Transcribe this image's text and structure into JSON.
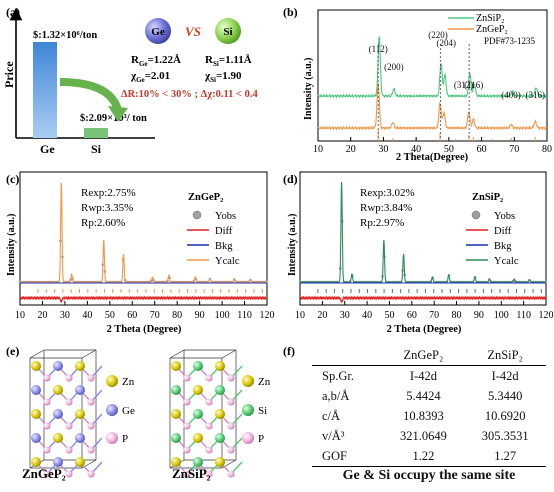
{
  "labels": {
    "a": "(a)",
    "b": "(b)",
    "c": "(c)",
    "d": "(d)",
    "e": "(e)",
    "f": "(f)"
  },
  "panel_a": {
    "ylabel": "Price",
    "price_ge": "$:1.32×10⁶/ton",
    "price_si": "$:2.09×10³/ ton",
    "cat_ge": "Ge",
    "cat_si": "Si",
    "ge_symbol": "Ge",
    "si_symbol": "Si",
    "vs": "VS",
    "r_ge": "R",
    "r_ge_sub": "Ge",
    "r_ge_val": "=1.22Å",
    "x_ge": "χ",
    "x_ge_sub": "Ge",
    "x_ge_val": "=2.01",
    "r_si": "R",
    "r_si_sub": "Si",
    "r_si_val": "=1.11Å",
    "x_si": "χ",
    "x_si_sub": "Si",
    "x_si_val": "=1.90",
    "delta": "ΔR:10% < 30% ; Δχ:0.11 < 0.4",
    "colors": {
      "ge_bar": "#5b9bd5",
      "si_bar": "#7ac27a",
      "delta": "#c0392b",
      "arrow": "#66b34e"
    }
  },
  "panel_b": {
    "xlabel": "2 Theta(Degree)",
    "ylabel": "Intensity  (a.u.)",
    "legend": [
      {
        "name": "ZnSiP₂",
        "color": "#4cc77e"
      },
      {
        "name": "ZnGeP₂",
        "color": "#f2974b"
      }
    ],
    "pdf": "PDF#73-1235",
    "xticks": [
      "10",
      "20",
      "30",
      "40",
      "50",
      "60",
      "70",
      "80"
    ],
    "peaks": [
      "(112)",
      "(200)",
      "(220)",
      "(204)",
      "(312)",
      "(116)",
      "(400)",
      "(316)"
    ]
  },
  "panel_c": {
    "title": "ZnGeP₂",
    "rexp": "Rexp:2.75%",
    "rwp": "Rwp:3.35%",
    "rp": "Rp:2.60%",
    "xlabel": "2 Theta (Degree)",
    "ylabel": "Intensity (a.u.)",
    "legend": [
      {
        "name": "Yobs",
        "color": "#999999"
      },
      {
        "name": "Diff",
        "color": "#e02020"
      },
      {
        "name": "Bkg",
        "color": "#1f2fb8"
      },
      {
        "name": "Ycalc",
        "color": "#f2974b"
      }
    ],
    "xticks": [
      "10",
      "20",
      "30",
      "40",
      "50",
      "60",
      "70",
      "80",
      "90",
      "100",
      "110",
      "120"
    ]
  },
  "panel_d": {
    "title": "ZnSiP₂",
    "rexp": "Rexp:3.02%",
    "rwp": "Rwp:3.84%",
    "rp": "Rp:2.97%",
    "xlabel": "2 Theta (Degree)",
    "ylabel": "Intensity (a.u.)",
    "legend": [
      {
        "name": "Yobs",
        "color": "#999999"
      },
      {
        "name": "Diff",
        "color": "#e02020"
      },
      {
        "name": "Bkg",
        "color": "#1f2fb8"
      },
      {
        "name": "Ycalc",
        "color": "#2e8b57"
      }
    ],
    "xticks": [
      "10",
      "20",
      "30",
      "40",
      "50",
      "60",
      "70",
      "80",
      "90",
      "100",
      "110",
      "120"
    ]
  },
  "panel_e": {
    "legend": [
      {
        "name": "Zn",
        "color": "#d4c400"
      },
      {
        "name": "Ge",
        "color": "#7b7fe0"
      },
      {
        "name": "P",
        "color": "#f0a8d8"
      },
      {
        "name": "Zn",
        "color": "#d4c400"
      },
      {
        "name": "Si",
        "color": "#4ac46a"
      },
      {
        "name": "P",
        "color": "#f0a8d8"
      }
    ],
    "label_zngep2": "ZnGeP₂",
    "label_znsip2": "ZnSiP₂"
  },
  "panel_f": {
    "headers": [
      "",
      "ZnGeP₂",
      "ZnSiP₂"
    ],
    "rows": [
      [
        "Sp.Gr.",
        "I-42d",
        "I-42d"
      ],
      [
        "a,b/Å",
        "5.4424",
        "5.3440"
      ],
      [
        "c/Å",
        "10.8393",
        "10.6920"
      ],
      [
        "v/Å³",
        "321.0649",
        "305.3531"
      ],
      [
        "GOF",
        "1.22",
        "1.27"
      ]
    ],
    "note": "Ge & Si occupy the same site"
  }
}
